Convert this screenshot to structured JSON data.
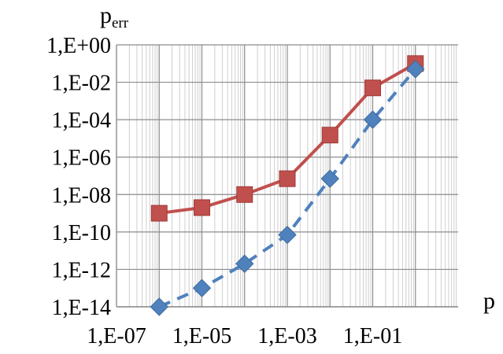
{
  "chart_data": {
    "type": "line",
    "xscale": "log",
    "yscale": "log",
    "xlim": [
      1e-07,
      10
    ],
    "ylim": [
      1e-14,
      1
    ],
    "xlabel": "p",
    "ylabel_main": "p",
    "ylabel_sub": "err",
    "grid": {
      "x_major": true,
      "x_minor": true,
      "y_major": true
    },
    "x_tick_labels": [
      {
        "value": 1e-07,
        "label": "1,E-07"
      },
      {
        "value": 1e-05,
        "label": "1,E-05"
      },
      {
        "value": 0.001,
        "label": "1,E-03"
      },
      {
        "value": 0.1,
        "label": "1,E-01"
      }
    ],
    "y_tick_labels": [
      {
        "value": 1,
        "label": "1,E+00"
      },
      {
        "value": 0.01,
        "label": "1,E-02"
      },
      {
        "value": 0.0001,
        "label": "1,E-04"
      },
      {
        "value": 1e-06,
        "label": "1,E-06"
      },
      {
        "value": 1e-08,
        "label": "1,E-08"
      },
      {
        "value": 1e-10,
        "label": "1,E-10"
      },
      {
        "value": 1e-12,
        "label": "1,E-12"
      },
      {
        "value": 1e-14,
        "label": "1,E-14"
      }
    ],
    "series": [
      {
        "marker": "square",
        "color": "#c0504d",
        "dash": "solid",
        "points": [
          {
            "x": 1e-06,
            "y": 1e-09
          },
          {
            "x": 1e-05,
            "y": 2e-09
          },
          {
            "x": 0.0001,
            "y": 1e-08
          },
          {
            "x": 0.001,
            "y": 7e-08
          },
          {
            "x": 0.01,
            "y": 1.5e-05
          },
          {
            "x": 0.1,
            "y": 0.005
          },
          {
            "x": 1,
            "y": 0.1
          }
        ]
      },
      {
        "marker": "diamond",
        "color": "#4f81bd",
        "dash": "dashed",
        "points": [
          {
            "x": 1e-06,
            "y": 1e-14
          },
          {
            "x": 1e-05,
            "y": 1e-13
          },
          {
            "x": 0.0001,
            "y": 2e-12
          },
          {
            "x": 0.001,
            "y": 7e-11
          },
          {
            "x": 0.01,
            "y": 7e-08
          },
          {
            "x": 0.1,
            "y": 0.0001
          },
          {
            "x": 1,
            "y": 0.05
          }
        ]
      }
    ]
  }
}
